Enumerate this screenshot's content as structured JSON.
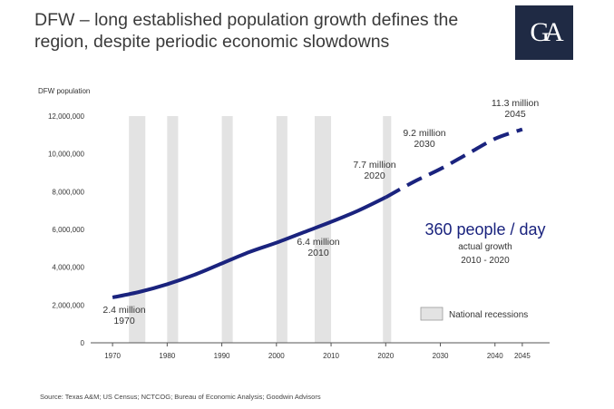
{
  "title": "DFW – long established population growth defines the region, despite periodic economic slowdowns",
  "logo_text": "GA",
  "source": "Source: Texas A&M; US Census; NCTCOG; Bureau of Economic Analysis; Goodwin Advisors",
  "colors": {
    "line": "#1a237e",
    "recession": "#e3e3e3",
    "highlight": "#1a237e"
  },
  "chart_data": {
    "type": "line",
    "ylabel": "DFW population",
    "ylim": [
      0,
      12000000
    ],
    "yticks": [
      0,
      2000000,
      4000000,
      6000000,
      8000000,
      10000000,
      12000000
    ],
    "ytick_labels": [
      "0",
      "2,000,000",
      "4,000,000",
      "6,000,000",
      "8,000,000",
      "10,000,000",
      "12,000,000"
    ],
    "xlim": [
      1966,
      2050
    ],
    "xticks": [
      1970,
      1980,
      1990,
      2000,
      2010,
      2020,
      2030,
      2040,
      2045
    ],
    "xtick_labels": [
      "1970",
      "1980",
      "1990",
      "2000",
      "2010",
      "2020",
      "2030",
      "2040",
      "2045"
    ],
    "series": [
      {
        "style": "solid",
        "x": [
          1970,
          1975,
          1980,
          1985,
          1990,
          1995,
          2000,
          2005,
          2010,
          2015,
          2020
        ],
        "y": [
          2400000,
          2700000,
          3100000,
          3600000,
          4200000,
          4800000,
          5300000,
          5850000,
          6400000,
          7000000,
          7700000
        ]
      },
      {
        "style": "dashed",
        "x": [
          2020,
          2025,
          2030,
          2035,
          2040,
          2045
        ],
        "y": [
          7700000,
          8500000,
          9200000,
          10000000,
          10800000,
          11300000
        ]
      }
    ],
    "recessions": [
      {
        "start": 1973,
        "end": 1976
      },
      {
        "start": 1980,
        "end": 1982
      },
      {
        "start": 1990,
        "end": 1992
      },
      {
        "start": 2000,
        "end": 2002
      },
      {
        "start": 2007,
        "end": 2010
      },
      {
        "start": 2019.5,
        "end": 2021
      }
    ],
    "annotations": [
      {
        "value": "2.4 million",
        "year": "1970"
      },
      {
        "value": "6.4 million",
        "year": "2010"
      },
      {
        "value": "7.7 million",
        "year": "2020"
      },
      {
        "value": "9.2 million",
        "year": "2030"
      },
      {
        "value": "11.3 million",
        "year": "2045"
      }
    ],
    "highlight": {
      "headline": "360 people / day",
      "line1": "actual growth",
      "line2": "2010 - 2020"
    },
    "legend": {
      "label": "National recessions",
      "position": "bottom-right"
    }
  }
}
